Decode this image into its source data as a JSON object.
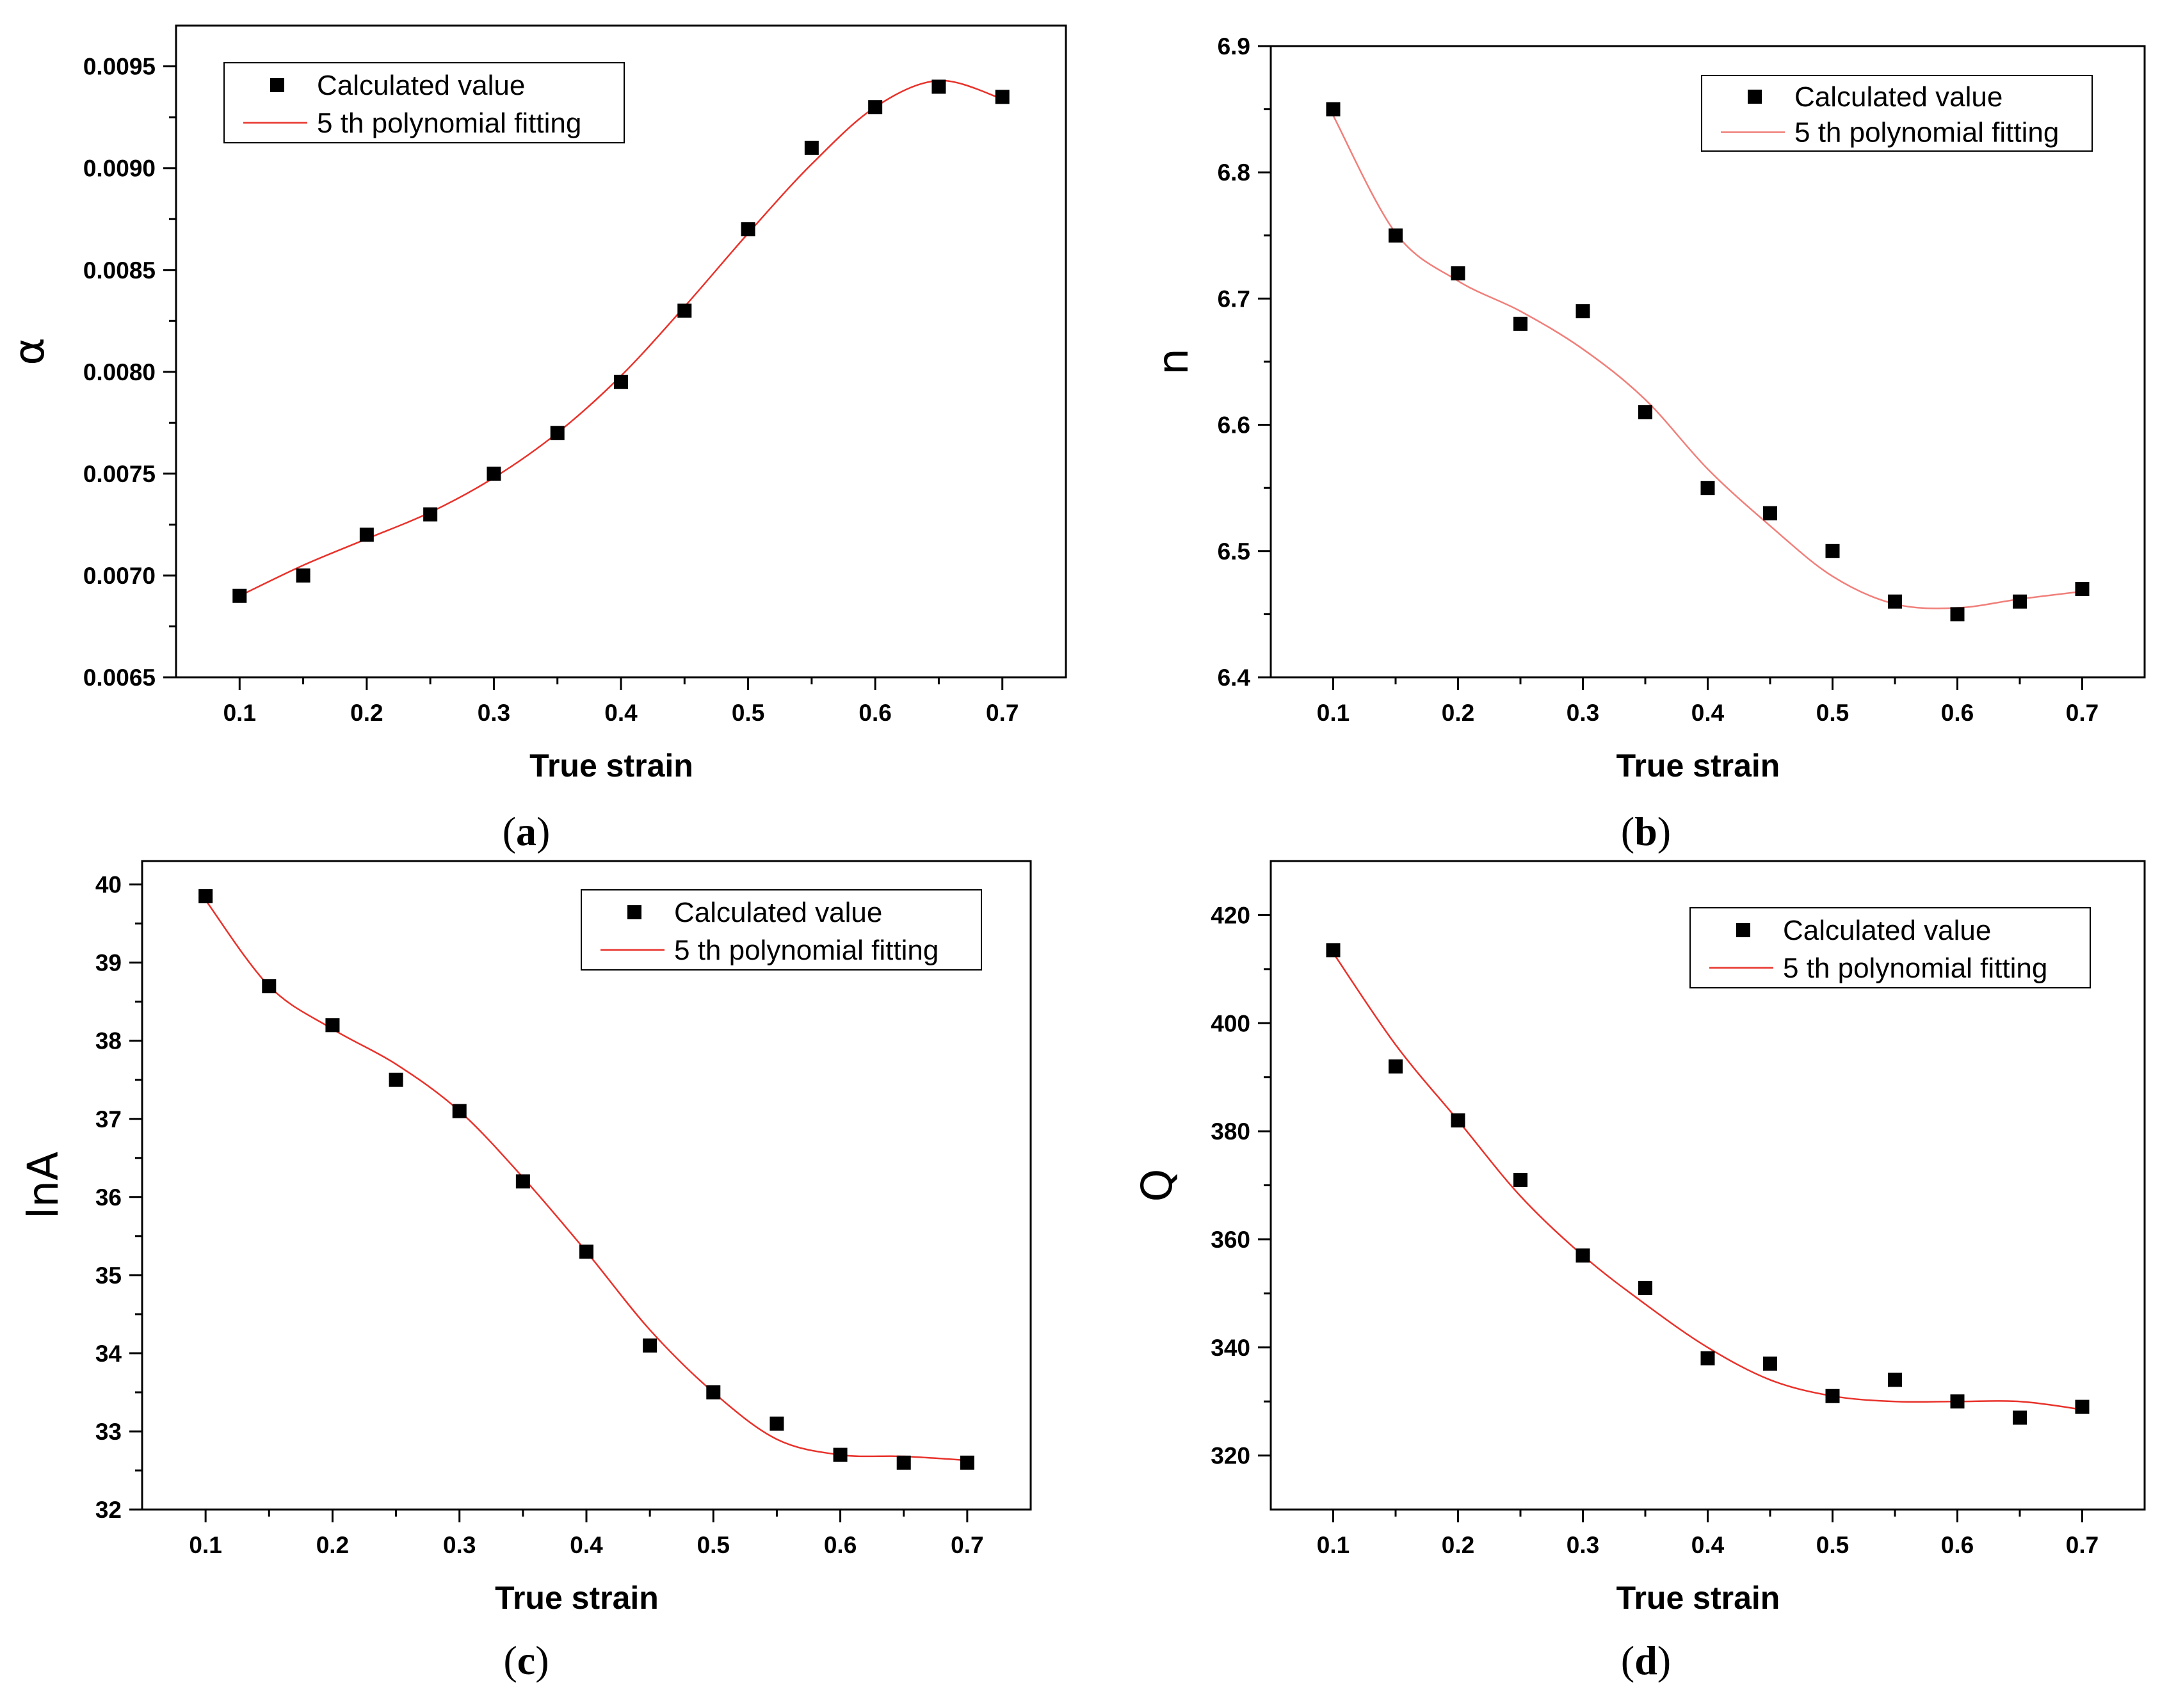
{
  "chart_data": [
    {
      "panel": "a",
      "type": "scatter",
      "caption": {
        "open": "(",
        "letter": "a",
        "close": ")"
      },
      "xlabel": "True strain",
      "ylabel": "α",
      "xlim": [
        0.05,
        0.75
      ],
      "ylim": [
        0.0065,
        0.0097
      ],
      "xticks": [
        0.1,
        0.2,
        0.3,
        0.4,
        0.5,
        0.6,
        0.7
      ],
      "xtick_labels": [
        "0.1",
        "0.2",
        "0.3",
        "0.4",
        "0.5",
        "0.6",
        "0.7"
      ],
      "yticks": [
        0.0065,
        0.007,
        0.0075,
        0.008,
        0.0085,
        0.009,
        0.0095
      ],
      "ytick_labels": [
        "0.0065",
        "0.0070",
        "0.0075",
        "0.0080",
        "0.0085",
        "0.0090",
        "0.0095"
      ],
      "legend": {
        "position": "top-left",
        "entries": [
          "Calculated value",
          "5 th polynomial fitting"
        ]
      },
      "series": [
        {
          "name": "Calculated value",
          "style": "markers",
          "x": [
            0.1,
            0.15,
            0.2,
            0.25,
            0.3,
            0.35,
            0.4,
            0.45,
            0.5,
            0.55,
            0.6,
            0.65,
            0.7
          ],
          "y": [
            0.0069,
            0.007,
            0.0072,
            0.0073,
            0.0075,
            0.0077,
            0.00795,
            0.0083,
            0.0087,
            0.0091,
            0.0093,
            0.0094,
            0.00935
          ]
        },
        {
          "name": "5 th polynomial fitting",
          "style": "line",
          "color": "#e8322b",
          "x": [
            0.1,
            0.15,
            0.2,
            0.25,
            0.3,
            0.35,
            0.4,
            0.45,
            0.5,
            0.55,
            0.6,
            0.65,
            0.7
          ],
          "y": [
            0.0069,
            0.00705,
            0.00718,
            0.00731,
            0.00748,
            0.0077,
            0.00798,
            0.00832,
            0.00868,
            0.00902,
            0.0093,
            0.00943,
            0.00934
          ]
        }
      ]
    },
    {
      "panel": "b",
      "type": "scatter",
      "caption": {
        "open": "(",
        "letter": "b",
        "close": ")"
      },
      "xlabel": "True strain",
      "ylabel": "n",
      "xlim": [
        0.05,
        0.75
      ],
      "ylim": [
        6.4,
        6.9
      ],
      "xticks": [
        0.1,
        0.2,
        0.3,
        0.4,
        0.5,
        0.6,
        0.7
      ],
      "xtick_labels": [
        "0.1",
        "0.2",
        "0.3",
        "0.4",
        "0.5",
        "0.6",
        "0.7"
      ],
      "yticks": [
        6.4,
        6.5,
        6.6,
        6.7,
        6.8,
        6.9
      ],
      "ytick_labels": [
        "6.4",
        "6.5",
        "6.6",
        "6.7",
        "6.8",
        "6.9"
      ],
      "legend": {
        "position": "top-right",
        "entries": [
          "Calculated value",
          "5 th polynomial fitting"
        ]
      },
      "series": [
        {
          "name": "Calculated value",
          "style": "markers",
          "x": [
            0.1,
            0.15,
            0.2,
            0.25,
            0.3,
            0.35,
            0.4,
            0.45,
            0.5,
            0.55,
            0.6,
            0.65,
            0.7
          ],
          "y": [
            6.85,
            6.75,
            6.72,
            6.68,
            6.69,
            6.61,
            6.55,
            6.53,
            6.5,
            6.46,
            6.45,
            6.46,
            6.47
          ]
        },
        {
          "name": "5 th polynomial fitting",
          "style": "line",
          "color": "#f07f7a",
          "x": [
            0.1,
            0.15,
            0.2,
            0.25,
            0.3,
            0.35,
            0.4,
            0.45,
            0.5,
            0.55,
            0.6,
            0.65,
            0.7
          ],
          "y": [
            6.845,
            6.752,
            6.714,
            6.69,
            6.66,
            6.62,
            6.565,
            6.52,
            6.48,
            6.458,
            6.455,
            6.462,
            6.468
          ]
        }
      ]
    },
    {
      "panel": "c",
      "type": "scatter",
      "caption": {
        "open": "(",
        "letter": "c",
        "close": ")"
      },
      "xlabel": "True strain",
      "ylabel": "lnA",
      "xlim": [
        0.05,
        0.75
      ],
      "ylim": [
        32,
        40.3
      ],
      "xticks": [
        0.1,
        0.2,
        0.3,
        0.4,
        0.5,
        0.6,
        0.7
      ],
      "xtick_labels": [
        "0.1",
        "0.2",
        "0.3",
        "0.4",
        "0.5",
        "0.6",
        "0.7"
      ],
      "yticks": [
        32,
        33,
        34,
        35,
        36,
        37,
        38,
        39,
        40
      ],
      "ytick_labels": [
        "32",
        "33",
        "34",
        "35",
        "36",
        "37",
        "38",
        "39",
        "40"
      ],
      "legend": {
        "position": "top-right",
        "entries": [
          "Calculated value",
          "5 th polynomial fitting"
        ]
      },
      "series": [
        {
          "name": "Calculated value",
          "style": "markers",
          "x": [
            0.1,
            0.15,
            0.2,
            0.25,
            0.3,
            0.35,
            0.4,
            0.45,
            0.5,
            0.55,
            0.6,
            0.65,
            0.7
          ],
          "y": [
            39.85,
            38.7,
            38.2,
            37.5,
            37.1,
            36.2,
            35.3,
            34.1,
            33.5,
            33.1,
            32.7,
            32.6,
            32.6
          ]
        },
        {
          "name": "5 th polynomial fitting",
          "style": "line",
          "color": "#e8322b",
          "x": [
            0.1,
            0.15,
            0.2,
            0.25,
            0.3,
            0.35,
            0.4,
            0.45,
            0.5,
            0.55,
            0.6,
            0.65,
            0.7
          ],
          "y": [
            39.8,
            38.7,
            38.15,
            37.7,
            37.1,
            36.25,
            35.3,
            34.3,
            33.5,
            32.9,
            32.7,
            32.68,
            32.63
          ]
        }
      ]
    },
    {
      "panel": "d",
      "type": "scatter",
      "caption": {
        "open": "(",
        "letter": "d",
        "close": ")"
      },
      "xlabel": "True strain",
      "ylabel": "Q",
      "xlim": [
        0.05,
        0.75
      ],
      "ylim": [
        310,
        430
      ],
      "xticks": [
        0.1,
        0.2,
        0.3,
        0.4,
        0.5,
        0.6,
        0.7
      ],
      "xtick_labels": [
        "0.1",
        "0.2",
        "0.3",
        "0.4",
        "0.5",
        "0.6",
        "0.7"
      ],
      "yticks": [
        320,
        340,
        360,
        380,
        400,
        420
      ],
      "ytick_labels": [
        "320",
        "340",
        "360",
        "380",
        "400",
        "420"
      ],
      "legend": {
        "position": "top-right",
        "entries": [
          "Calculated value",
          "5 th polynomial fitting"
        ]
      },
      "series": [
        {
          "name": "Calculated value",
          "style": "markers",
          "x": [
            0.1,
            0.15,
            0.2,
            0.25,
            0.3,
            0.35,
            0.4,
            0.45,
            0.5,
            0.55,
            0.6,
            0.65,
            0.7
          ],
          "y": [
            413.5,
            392,
            382,
            371,
            357,
            351,
            338,
            337,
            331,
            334,
            330,
            327,
            329
          ]
        },
        {
          "name": "5 th polynomial fitting",
          "style": "line",
          "color": "#e8322b",
          "x": [
            0.1,
            0.15,
            0.2,
            0.25,
            0.3,
            0.35,
            0.4,
            0.45,
            0.5,
            0.55,
            0.6,
            0.65,
            0.7
          ],
          "y": [
            413,
            396,
            382,
            368,
            357,
            348,
            340,
            334,
            331,
            330,
            330,
            330,
            328.5
          ]
        }
      ]
    }
  ]
}
